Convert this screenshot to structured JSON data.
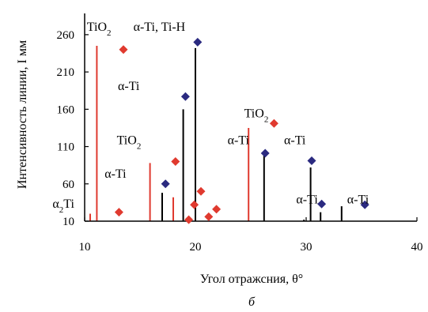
{
  "chart_data": {
    "type": "scatter",
    "xlabel": "Угол отражсния, θ°",
    "ylabel": "Интенсивность линии, I мм",
    "panel_label": "б",
    "xlim": [
      10,
      40
    ],
    "ylim": [
      10,
      280
    ],
    "x_ticks": [
      10,
      20,
      30,
      40
    ],
    "y_ticks": [
      10,
      60,
      110,
      160,
      210,
      260
    ],
    "x_tick_labels": [
      "10",
      "20",
      "30",
      "40"
    ],
    "y_tick_labels": [
      "10",
      "60",
      "110",
      "160",
      "210",
      "260"
    ],
    "grid": false,
    "series": [
      {
        "marker": "diamond",
        "color": "#e03a2f",
        "points": [
          {
            "x": 13.1,
            "y": 22
          },
          {
            "x": 13.5,
            "y": 240
          },
          {
            "x": 18.2,
            "y": 90
          },
          {
            "x": 19.4,
            "y": 12
          },
          {
            "x": 19.9,
            "y": 32
          },
          {
            "x": 20.5,
            "y": 50
          },
          {
            "x": 21.2,
            "y": 16
          },
          {
            "x": 21.9,
            "y": 26
          },
          {
            "x": 27.1,
            "y": 141
          }
        ]
      },
      {
        "marker": "diamond",
        "color": "#2b2a80",
        "points": [
          {
            "x": 17.3,
            "y": 60
          },
          {
            "x": 19.1,
            "y": 177
          },
          {
            "x": 20.2,
            "y": 250
          },
          {
            "x": 26.3,
            "y": 101
          },
          {
            "x": 30.5,
            "y": 91
          },
          {
            "x": 31.4,
            "y": 33
          },
          {
            "x": 35.3,
            "y": 32
          }
        ]
      }
    ],
    "reference_lines": [
      {
        "x": 10.5,
        "y": 20,
        "color": "#e03a2f"
      },
      {
        "x": 11.1,
        "y": 245,
        "color": "#e03a2f"
      },
      {
        "x": 15.9,
        "y": 88,
        "color": "#e03a2f"
      },
      {
        "x": 18.0,
        "y": 42,
        "color": "#e03a2f"
      },
      {
        "x": 24.8,
        "y": 135,
        "color": "#e03a2f"
      },
      {
        "x": 17.0,
        "y": 48,
        "color": "#000000"
      },
      {
        "x": 18.9,
        "y": 160,
        "color": "#000000"
      },
      {
        "x": 20.0,
        "y": 242,
        "color": "#000000"
      },
      {
        "x": 26.2,
        "y": 98,
        "color": "#000000"
      },
      {
        "x": 29.8,
        "y": 12,
        "color": "#000000"
      },
      {
        "x": 30.4,
        "y": 82,
        "color": "#000000"
      },
      {
        "x": 31.3,
        "y": 22,
        "color": "#000000"
      },
      {
        "x": 33.2,
        "y": 30,
        "color": "#000000"
      }
    ],
    "annotations": [
      {
        "text": "TiO",
        "sub": "2",
        "x": 10.2,
        "y": 265
      },
      {
        "text": "α-Ti, Ti-H",
        "x": 14.4,
        "y": 265
      },
      {
        "text": "α-Ti",
        "x": 13.0,
        "y": 186
      },
      {
        "text": "TiO",
        "sub": "2",
        "x": 24.4,
        "y": 149
      },
      {
        "text": "TiO",
        "sub": "2",
        "x": 12.9,
        "y": 113
      },
      {
        "text": "α-Ti",
        "x": 22.9,
        "y": 113
      },
      {
        "text": "α-Ti",
        "x": 28.0,
        "y": 113
      },
      {
        "text": "α-Ti",
        "x": 11.8,
        "y": 68
      },
      {
        "text": "α",
        "sub": "2",
        "tail": "Ti",
        "x": 7.1,
        "y": 28
      },
      {
        "text": "α-Ti",
        "x": 29.1,
        "y": 34
      },
      {
        "text": "α-Ti",
        "x": 33.7,
        "y": 34
      }
    ]
  }
}
